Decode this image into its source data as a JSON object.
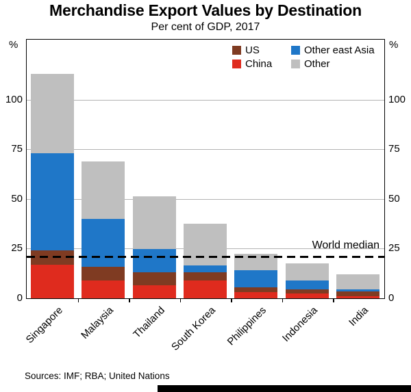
{
  "title": "Merchandise Export Values by Destination",
  "subtitle": "Per cent of GDP, 2017",
  "axis": {
    "unit_left": "%",
    "unit_right": "%"
  },
  "sources": "Sources: IMF; RBA; United Nations",
  "chart_data": {
    "type": "bar",
    "stacked": true,
    "title": "Merchandise Export Values by Destination",
    "subtitle": "Per cent of GDP, 2017",
    "ylabel": "%",
    "ylim": [
      0,
      130
    ],
    "yticks": [
      0,
      25,
      50,
      75,
      100
    ],
    "grid": true,
    "legend_position": "top-right-inside",
    "categories": [
      "Singapore",
      "Malaysia",
      "Thailand",
      "South Korea",
      "Philippines",
      "Indonesia",
      "India"
    ],
    "series": [
      {
        "name": "China",
        "color": "#df2b1e",
        "values": [
          17,
          9,
          6.5,
          9,
          3,
          2.5,
          1
        ]
      },
      {
        "name": "US",
        "color": "#7f3b22",
        "values": [
          7,
          7,
          6.5,
          4,
          2.5,
          2,
          2.5
        ]
      },
      {
        "name": "Other east Asia",
        "color": "#1f77c8",
        "values": [
          49,
          24,
          12,
          3.5,
          8.5,
          4.5,
          1
        ]
      },
      {
        "name": "Other",
        "color": "#bfbfbf",
        "values": [
          40,
          29,
          26.5,
          21,
          8.5,
          8.5,
          7.5
        ]
      }
    ],
    "totals": [
      113,
      69,
      51.5,
      37.5,
      22.5,
      17.5,
      12
    ],
    "legend_rows": [
      [
        "US",
        "Other east Asia"
      ],
      [
        "China",
        "Other"
      ]
    ],
    "annotation": {
      "label": "World median",
      "value": 21
    }
  }
}
